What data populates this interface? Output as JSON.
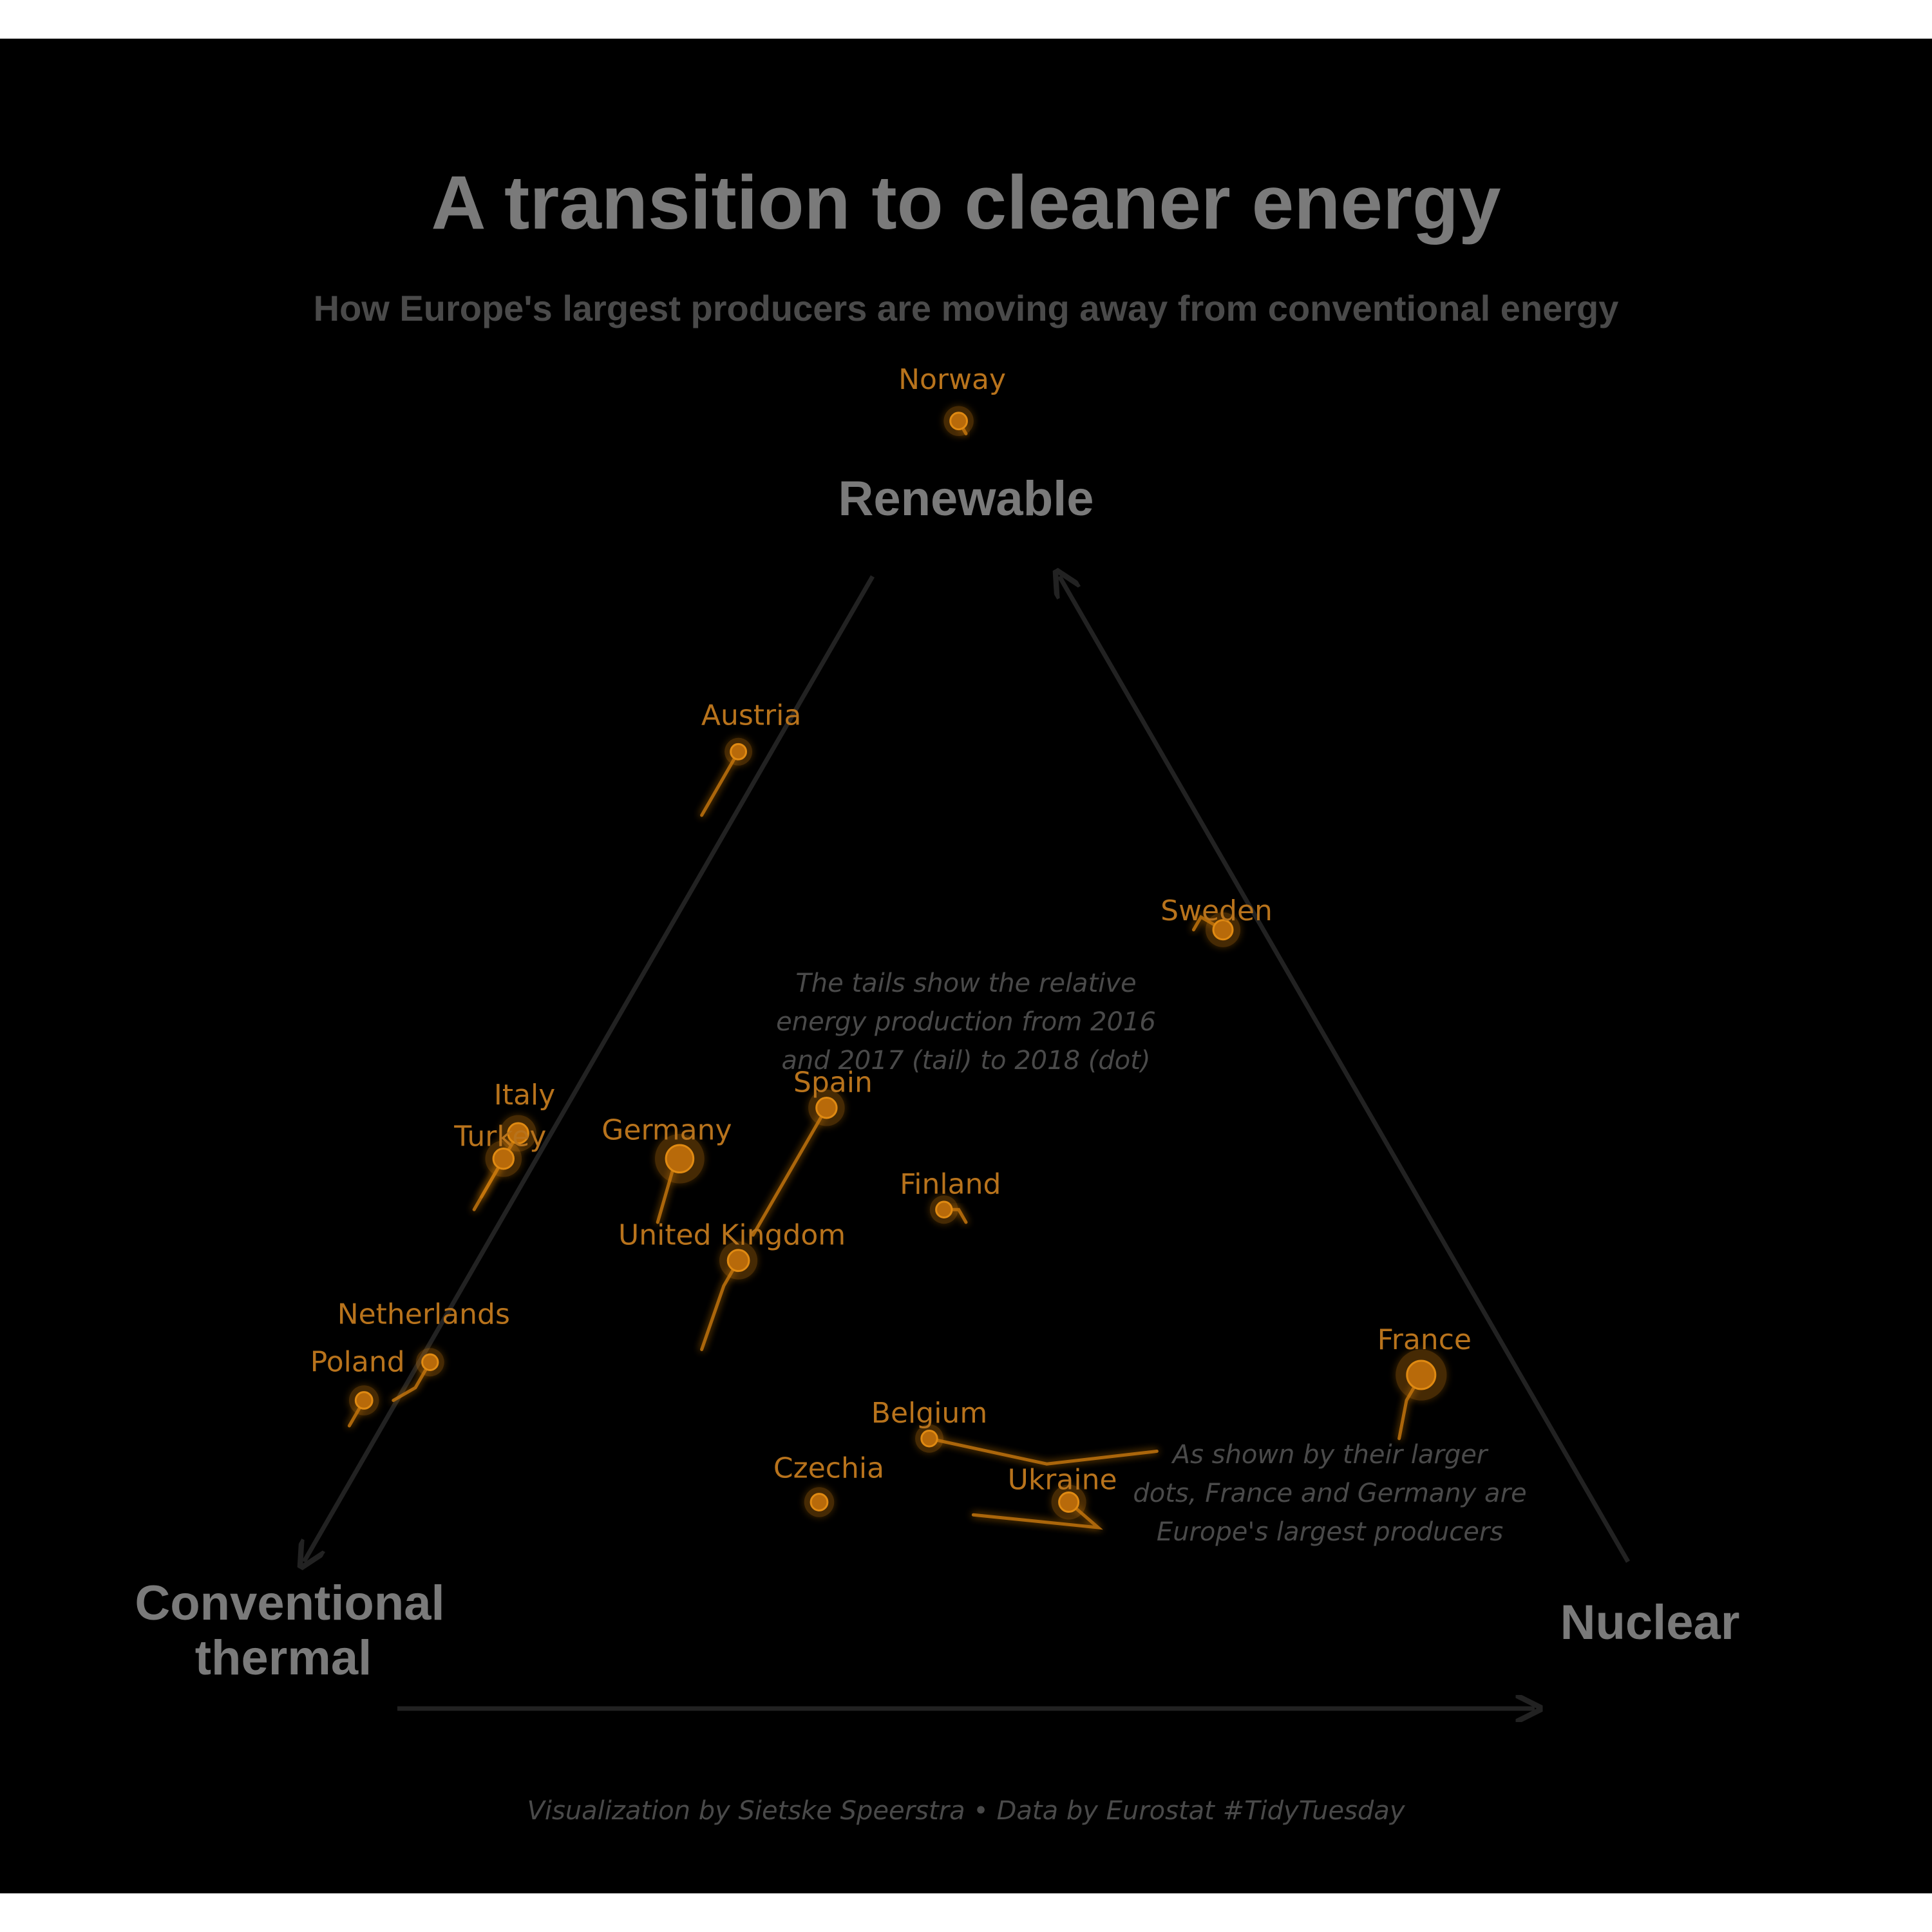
{
  "chart_data": {
    "type": "scatter",
    "subtype": "ternary",
    "title": "A transition to cleaner energy",
    "subtitle": "How Europe's largest producers are moving away from conventional energy",
    "caption": "Visualization by Sietske Speerstra • Data by Eurostat #TidyTuesday",
    "vertices": {
      "top": "Renewable",
      "left_line1": "Conventional",
      "left_line2": "thermal",
      "right": "Nuclear"
    },
    "annotations": {
      "tails": [
        "The tails show the relative",
        "energy production from 2016",
        "and 2017 (tail) to 2018 (dot)"
      ],
      "size": [
        "As shown by their larger",
        "dots, France and Germany are",
        "Europe's largest producers"
      ]
    },
    "colors": {
      "background": "#000000",
      "accent": "#c9780f",
      "axis": "#222222",
      "text": "#7a7a7a"
    },
    "series": [
      {
        "name": "Norway",
        "size": 0.35,
        "path": [
          [
            0.03,
            0.03,
            0.94
          ],
          [
            0.03,
            0.03,
            0.94
          ],
          [
            0.03,
            0.02,
            0.95
          ]
        ]
      },
      {
        "name": "Austria",
        "size": 0.28,
        "path": [
          [
            0.36,
            0.0,
            0.64
          ],
          [
            0.34,
            0.0,
            0.66
          ],
          [
            0.31,
            0.0,
            0.69
          ]
        ]
      },
      {
        "name": "Sweden",
        "size": 0.5,
        "path": [
          [
            0.07,
            0.38,
            0.55
          ],
          [
            0.06,
            0.38,
            0.56
          ],
          [
            0.05,
            0.4,
            0.55
          ]
        ]
      },
      {
        "name": "Spain",
        "size": 0.55,
        "path": [
          [
            0.49,
            0.2,
            0.31
          ],
          [
            0.44,
            0.2,
            0.36
          ],
          [
            0.39,
            0.2,
            0.41
          ]
        ]
      },
      {
        "name": "Italy",
        "size": 0.55,
        "path": [
          [
            0.66,
            0.0,
            0.34
          ],
          [
            0.64,
            0.0,
            0.36
          ],
          [
            0.61,
            0.0,
            0.39
          ]
        ]
      },
      {
        "name": "Turkey",
        "size": 0.55,
        "path": [
          [
            0.67,
            0.0,
            0.33
          ],
          [
            0.65,
            0.0,
            0.35
          ],
          [
            0.63,
            0.0,
            0.37
          ]
        ]
      },
      {
        "name": "Germany",
        "size": 0.95,
        "path": [
          [
            0.55,
            0.13,
            0.32
          ],
          [
            0.52,
            0.12,
            0.36
          ],
          [
            0.51,
            0.12,
            0.37
          ]
        ]
      },
      {
        "name": "United Kingdom",
        "size": 0.6,
        "path": [
          [
            0.57,
            0.21,
            0.22
          ],
          [
            0.53,
            0.2,
            0.27
          ],
          [
            0.51,
            0.2,
            0.29
          ]
        ]
      },
      {
        "name": "Finland",
        "size": 0.3,
        "path": [
          [
            0.34,
            0.34,
            0.32
          ],
          [
            0.34,
            0.33,
            0.33
          ],
          [
            0.35,
            0.32,
            0.33
          ]
        ]
      },
      {
        "name": "Netherlands",
        "size": 0.3,
        "path": [
          [
            0.8,
            0.02,
            0.18
          ],
          [
            0.78,
            0.03,
            0.19
          ],
          [
            0.76,
            0.03,
            0.21
          ]
        ]
      },
      {
        "name": "Poland",
        "size": 0.35,
        "path": [
          [
            0.84,
            0.0,
            0.16
          ],
          [
            0.84,
            0.0,
            0.16
          ],
          [
            0.82,
            0.0,
            0.18
          ]
        ]
      },
      {
        "name": "Czechia",
        "size": 0.35,
        "path": [
          [
            0.57,
            0.33,
            0.1
          ],
          [
            0.56,
            0.34,
            0.1
          ],
          [
            0.55,
            0.35,
            0.1
          ]
        ]
      },
      {
        "name": "Belgium",
        "size": 0.3,
        "path": [
          [
            0.3,
            0.56,
            0.14
          ],
          [
            0.38,
            0.49,
            0.13
          ],
          [
            0.45,
            0.4,
            0.15
          ]
        ]
      },
      {
        "name": "Ukraine",
        "size": 0.5,
        "path": [
          [
            0.45,
            0.46,
            0.09
          ],
          [
            0.37,
            0.55,
            0.08
          ],
          [
            0.38,
            0.52,
            0.1
          ]
        ]
      },
      {
        "name": "France",
        "size": 1.0,
        "path": [
          [
            0.13,
            0.72,
            0.15
          ],
          [
            0.11,
            0.71,
            0.18
          ],
          [
            0.09,
            0.71,
            0.2
          ]
        ]
      }
    ]
  }
}
